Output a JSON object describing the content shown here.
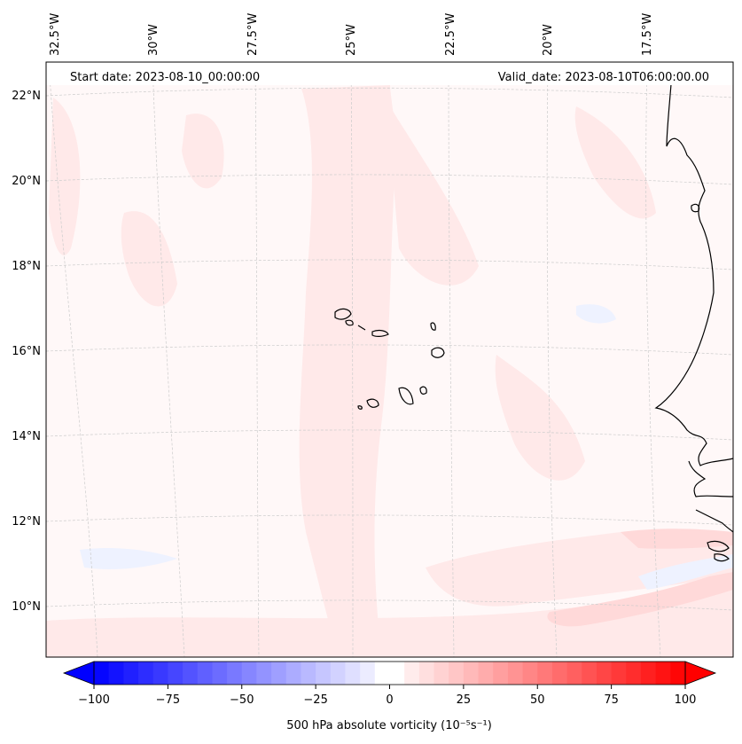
{
  "header": {
    "start_date": "Start date: 2023-08-10_00:00:00",
    "valid_date": "Valid_date: 2023-08-10T06:00:00.00"
  },
  "longitude_labels": [
    "32.5°W",
    "30°W",
    "27.5°W",
    "25°W",
    "22.5°W",
    "20°W",
    "17.5°W"
  ],
  "latitude_labels": [
    "22°N",
    "20°N",
    "18°N",
    "16°N",
    "14°N",
    "12°N",
    "10°N"
  ],
  "colorbar": {
    "ticks": [
      "−100",
      "−75",
      "−50",
      "−25",
      "0",
      "25",
      "50",
      "75",
      "100"
    ],
    "label": "500 hPa absolute vorticity (10⁻⁵s⁻¹)",
    "min": -100,
    "max": 100,
    "step": 5,
    "min_color": "#0000ff",
    "mid_color": "#ffffff",
    "max_color": "#ff0000"
  },
  "colors": {
    "background_tint": "#fff8f8",
    "pale_red": "#ffe8e8",
    "pale_blue": "#f0f3ff",
    "coast": "#000000",
    "grid": "#cccccc"
  }
}
